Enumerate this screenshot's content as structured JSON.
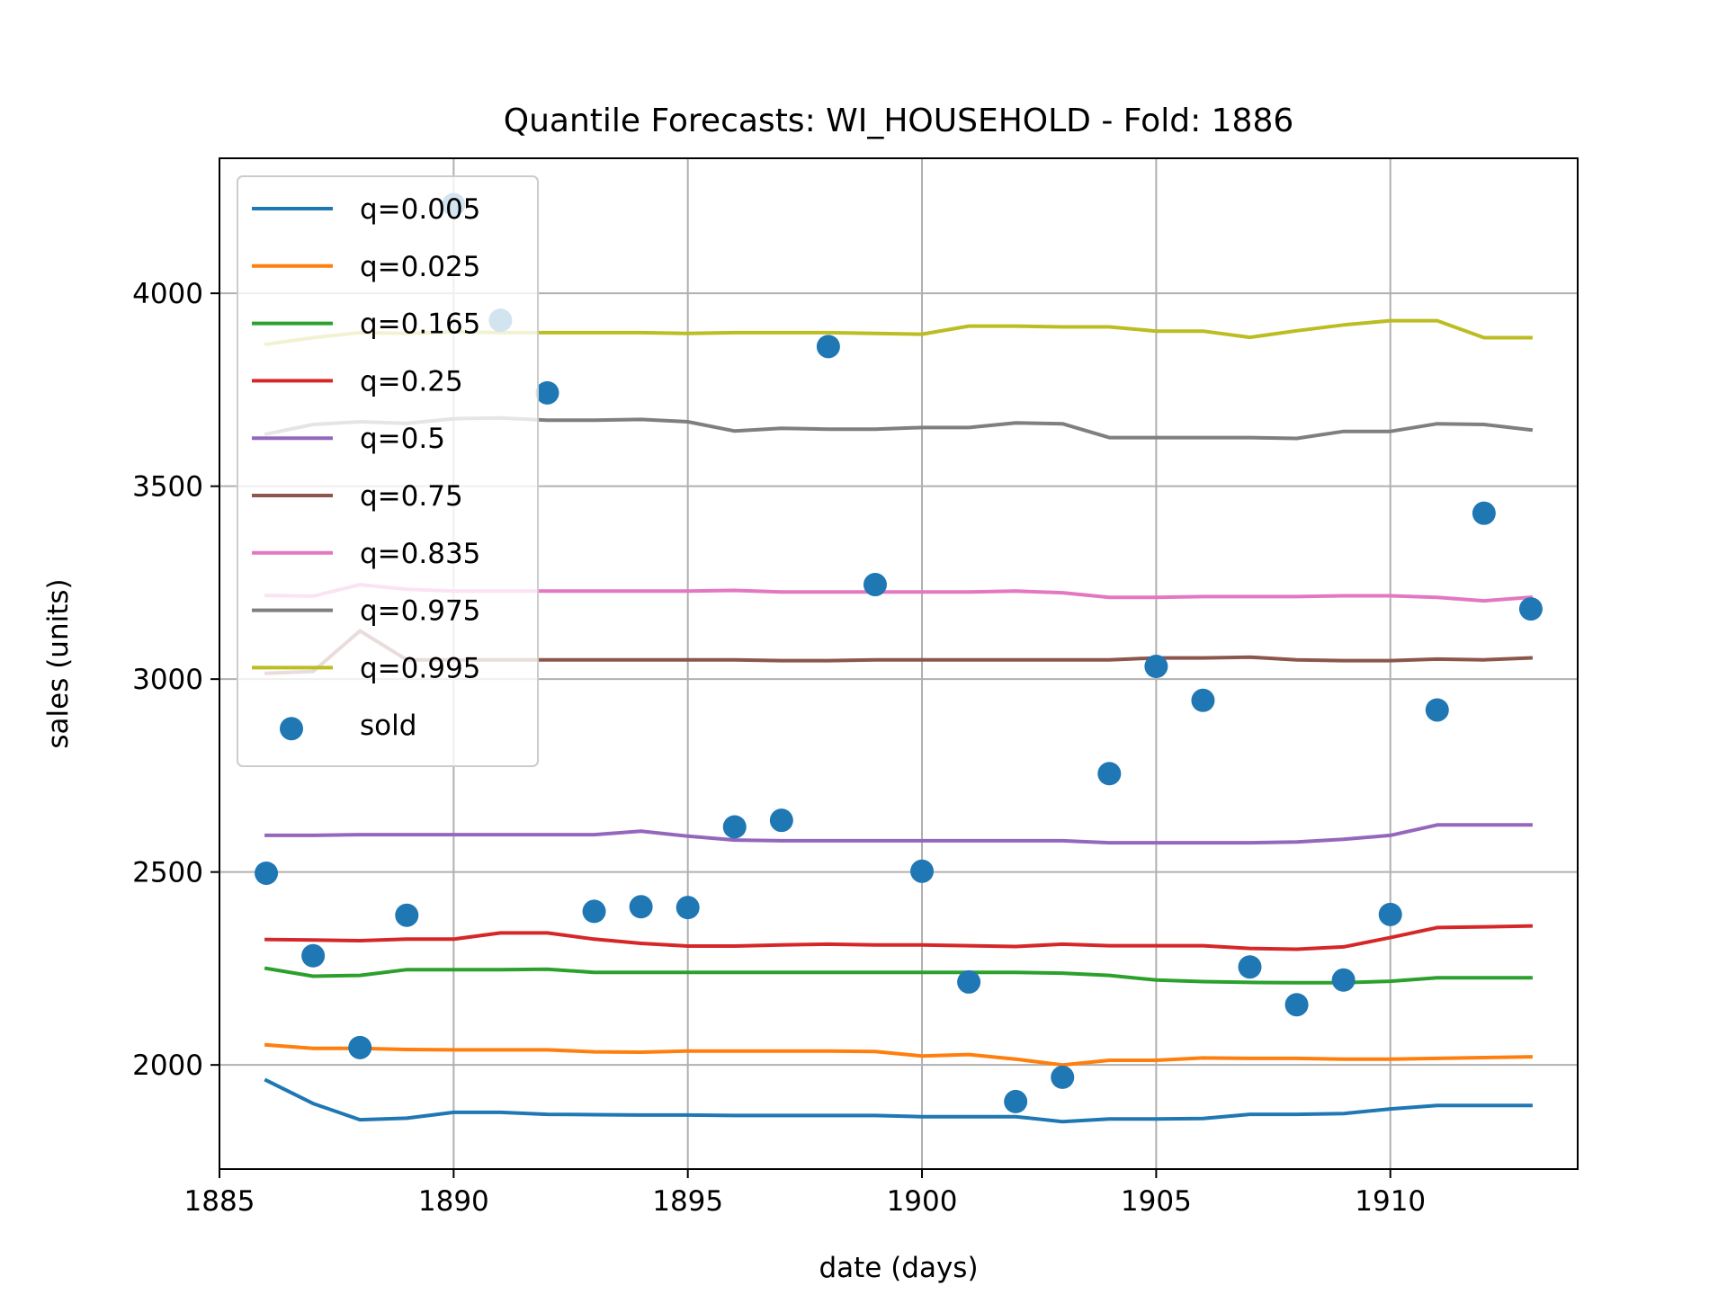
{
  "chart_data": {
    "type": "line",
    "title": "Quantile Forecasts: WI_HOUSEHOLD - Fold: 1886",
    "xlabel": "date (days)",
    "ylabel": "sales (units)",
    "xlim": [
      1885,
      1914
    ],
    "ylim": [
      1730,
      4350
    ],
    "xticks": [
      1885,
      1890,
      1895,
      1900,
      1905,
      1910
    ],
    "yticks": [
      2000,
      2500,
      3000,
      3500,
      4000
    ],
    "grid": true,
    "legend_position": "top-left",
    "x": [
      1886,
      1887,
      1888,
      1889,
      1890,
      1891,
      1892,
      1893,
      1894,
      1895,
      1896,
      1897,
      1898,
      1899,
      1900,
      1901,
      1902,
      1903,
      1904,
      1905,
      1906,
      1907,
      1908,
      1909,
      1910,
      1911,
      1912,
      1913
    ],
    "series": [
      {
        "name": "q=0.005",
        "color": "#1f77b4",
        "values": [
          1960,
          1900,
          1858,
          1862,
          1877,
          1877,
          1872,
          1871,
          1870,
          1870,
          1869,
          1869,
          1869,
          1869,
          1866,
          1866,
          1866,
          1853,
          1860,
          1860,
          1861,
          1872,
          1872,
          1874,
          1886,
          1895,
          1895,
          1895
        ]
      },
      {
        "name": "q=0.025",
        "color": "#ff7f0e",
        "values": [
          2052,
          2043,
          2043,
          2040,
          2039,
          2039,
          2039,
          2034,
          2033,
          2036,
          2036,
          2036,
          2036,
          2035,
          2023,
          2027,
          2015,
          2000,
          2012,
          2012,
          2018,
          2017,
          2017,
          2015,
          2015,
          2017,
          2019,
          2021
        ]
      },
      {
        "name": "q=0.165",
        "color": "#2ca02c",
        "values": [
          2250,
          2230,
          2232,
          2247,
          2247,
          2247,
          2248,
          2240,
          2240,
          2240,
          2240,
          2240,
          2240,
          2240,
          2240,
          2240,
          2240,
          2238,
          2232,
          2220,
          2216,
          2214,
          2213,
          2213,
          2217,
          2226,
          2226,
          2226
        ]
      },
      {
        "name": "q=0.25",
        "color": "#d62728",
        "values": [
          2325,
          2324,
          2322,
          2326,
          2326,
          2342,
          2342,
          2326,
          2315,
          2308,
          2308,
          2311,
          2313,
          2311,
          2311,
          2309,
          2307,
          2313,
          2309,
          2309,
          2309,
          2302,
          2300,
          2306,
          2330,
          2356,
          2358,
          2360
        ]
      },
      {
        "name": "q=0.5",
        "color": "#9467bd",
        "values": [
          2595,
          2595,
          2597,
          2597,
          2597,
          2597,
          2597,
          2597,
          2606,
          2593,
          2583,
          2581,
          2581,
          2581,
          2581,
          2581,
          2581,
          2581,
          2576,
          2576,
          2576,
          2576,
          2578,
          2585,
          2595,
          2622,
          2622,
          2622
        ]
      },
      {
        "name": "q=0.75",
        "color": "#8c564b",
        "values": [
          3015,
          3020,
          3125,
          3050,
          3050,
          3050,
          3050,
          3050,
          3050,
          3050,
          3050,
          3048,
          3048,
          3050,
          3050,
          3050,
          3050,
          3050,
          3050,
          3055,
          3055,
          3057,
          3050,
          3048,
          3048,
          3052,
          3050,
          3055
        ]
      },
      {
        "name": "q=0.835",
        "color": "#e377c2",
        "values": [
          3217,
          3215,
          3245,
          3233,
          3228,
          3228,
          3228,
          3228,
          3228,
          3228,
          3230,
          3226,
          3226,
          3226,
          3226,
          3226,
          3228,
          3224,
          3212,
          3212,
          3214,
          3214,
          3214,
          3216,
          3216,
          3212,
          3203,
          3212
        ]
      },
      {
        "name": "q=0.975",
        "color": "#7f7f7f",
        "values": [
          3635,
          3660,
          3667,
          3663,
          3675,
          3677,
          3671,
          3671,
          3673,
          3667,
          3643,
          3650,
          3648,
          3648,
          3652,
          3652,
          3664,
          3662,
          3626,
          3626,
          3626,
          3626,
          3624,
          3642,
          3642,
          3662,
          3660,
          3646
        ]
      },
      {
        "name": "q=0.995",
        "color": "#bcbd22",
        "values": [
          3868,
          3885,
          3898,
          3896,
          3900,
          3898,
          3898,
          3898,
          3898,
          3896,
          3898,
          3898,
          3898,
          3896,
          3894,
          3915,
          3915,
          3913,
          3913,
          3902,
          3902,
          3886,
          3903,
          3918,
          3929,
          3929,
          3885,
          3885
        ]
      }
    ],
    "scatter": {
      "name": "sold",
      "color": "#1f77b4",
      "points": [
        [
          1886,
          2497
        ],
        [
          1887,
          2283
        ],
        [
          1888,
          2045
        ],
        [
          1889,
          2388
        ],
        [
          1890,
          4230
        ],
        [
          1891,
          3930
        ],
        [
          1892,
          3742
        ],
        [
          1893,
          2398
        ],
        [
          1894,
          2410
        ],
        [
          1895,
          2408
        ],
        [
          1896,
          2617
        ],
        [
          1897,
          2634
        ],
        [
          1898,
          3862
        ],
        [
          1899,
          3245
        ],
        [
          1900,
          2502
        ],
        [
          1901,
          2215
        ],
        [
          1902,
          1905
        ],
        [
          1903,
          1968
        ],
        [
          1904,
          2755
        ],
        [
          1905,
          3033
        ],
        [
          1906,
          2945
        ],
        [
          1907,
          2254
        ],
        [
          1908,
          2156
        ],
        [
          1909,
          2220
        ],
        [
          1910,
          2390
        ],
        [
          1911,
          2920
        ],
        [
          1912,
          3430
        ],
        [
          1913,
          3182
        ]
      ]
    }
  }
}
